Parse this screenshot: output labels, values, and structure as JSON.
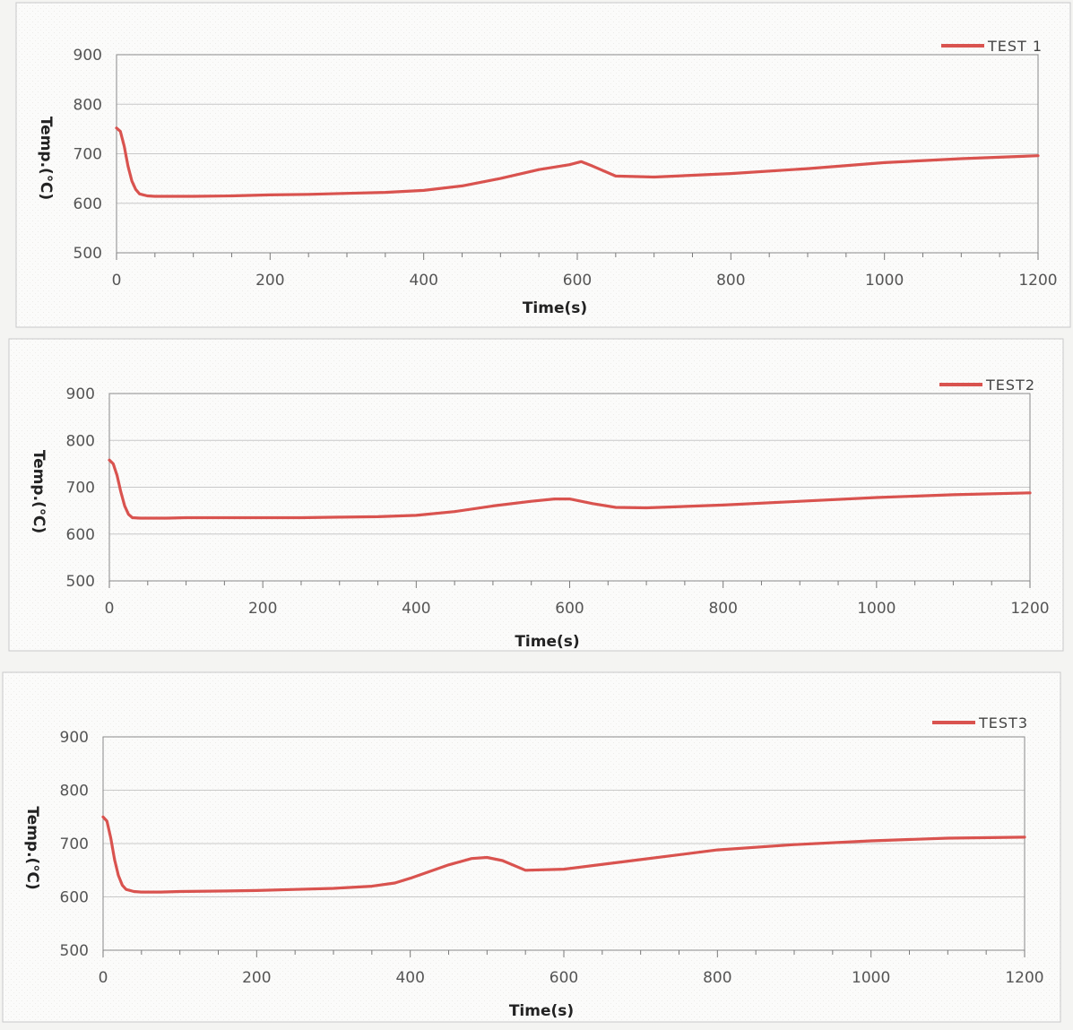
{
  "chart_data": [
    {
      "type": "line",
      "xlabel": "Time(s)",
      "ylabel": "Temp.(℃)",
      "xlim": [
        0,
        1200
      ],
      "ylim": [
        500,
        900
      ],
      "x_ticks": [
        "0",
        "200",
        "400",
        "600",
        "800",
        "1000",
        "1200"
      ],
      "y_ticks": [
        "900",
        "800",
        "700",
        "600",
        "500"
      ],
      "legend_position": "top-right",
      "grid": true,
      "series": [
        {
          "name": "TEST 1",
          "color": "#d9534f",
          "x": [
            0,
            5,
            10,
            15,
            20,
            25,
            30,
            40,
            50,
            75,
            100,
            150,
            200,
            250,
            300,
            350,
            400,
            450,
            500,
            550,
            590,
            605,
            620,
            650,
            700,
            800,
            900,
            1000,
            1100,
            1200
          ],
          "y": [
            752,
            745,
            715,
            675,
            645,
            628,
            619,
            615,
            614,
            614,
            614,
            615,
            617,
            618,
            620,
            622,
            626,
            635,
            650,
            668,
            678,
            684,
            675,
            655,
            653,
            660,
            670,
            682,
            690,
            696
          ]
        }
      ]
    },
    {
      "type": "line",
      "xlabel": "Time(s)",
      "ylabel": "Temp.(℃)",
      "xlim": [
        0,
        1200
      ],
      "ylim": [
        500,
        900
      ],
      "x_ticks": [
        "0",
        "200",
        "400",
        "600",
        "800",
        "1000",
        "1200"
      ],
      "y_ticks": [
        "900",
        "800",
        "700",
        "600",
        "500"
      ],
      "legend_position": "top-right",
      "grid": true,
      "series": [
        {
          "name": "TEST2",
          "color": "#d9534f",
          "x": [
            0,
            5,
            10,
            15,
            20,
            25,
            30,
            40,
            50,
            75,
            100,
            150,
            200,
            250,
            300,
            350,
            400,
            450,
            500,
            550,
            580,
            600,
            630,
            660,
            700,
            800,
            900,
            1000,
            1100,
            1200
          ],
          "y": [
            758,
            750,
            725,
            690,
            660,
            642,
            635,
            634,
            634,
            634,
            635,
            635,
            635,
            635,
            636,
            637,
            640,
            648,
            660,
            670,
            675,
            675,
            665,
            657,
            656,
            662,
            670,
            678,
            684,
            688
          ]
        }
      ]
    },
    {
      "type": "line",
      "xlabel": "Time(s)",
      "ylabel": "Temp.(℃)",
      "xlim": [
        0,
        1200
      ],
      "ylim": [
        500,
        900
      ],
      "x_ticks": [
        "0",
        "200",
        "400",
        "600",
        "800",
        "1000",
        "1200"
      ],
      "y_ticks": [
        "900",
        "800",
        "700",
        "600",
        "500"
      ],
      "legend_position": "top-right",
      "grid": true,
      "series": [
        {
          "name": "TEST3",
          "color": "#d9534f",
          "x": [
            0,
            5,
            10,
            15,
            20,
            25,
            30,
            40,
            50,
            75,
            100,
            150,
            200,
            250,
            300,
            350,
            380,
            400,
            450,
            480,
            500,
            520,
            550,
            600,
            700,
            800,
            900,
            1000,
            1100,
            1200
          ],
          "y": [
            750,
            742,
            710,
            670,
            640,
            622,
            614,
            610,
            609,
            609,
            610,
            611,
            612,
            614,
            616,
            620,
            626,
            635,
            660,
            672,
            674,
            668,
            650,
            652,
            670,
            688,
            698,
            705,
            710,
            712
          ]
        }
      ]
    }
  ]
}
